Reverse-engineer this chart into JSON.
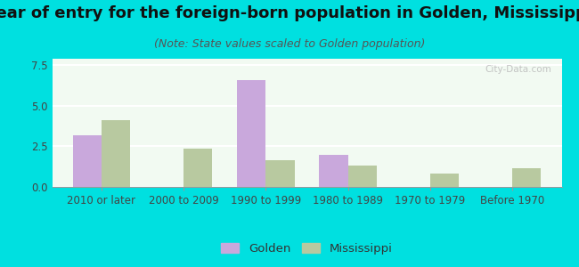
{
  "title": "Year of entry for the foreign-born population in Golden, Mississippi",
  "subtitle": "(Note: State values scaled to Golden population)",
  "categories": [
    "2010 or later",
    "2000 to 2009",
    "1990 to 1999",
    "1980 to 1989",
    "1970 to 1979",
    "Before 1970"
  ],
  "golden_values": [
    3.2,
    0.0,
    6.6,
    2.0,
    0.0,
    0.0
  ],
  "mississippi_values": [
    4.1,
    2.35,
    1.65,
    1.3,
    0.85,
    1.15
  ],
  "golden_color": "#c9a8dc",
  "mississippi_color": "#b8c9a0",
  "background_outer": "#00e0e0",
  "background_chart_top": "#f5fff5",
  "background_chart_bottom": "#e8f5e8",
  "ylim": [
    0,
    7.9
  ],
  "yticks": [
    0,
    2.5,
    5,
    7.5
  ],
  "title_fontsize": 13,
  "subtitle_fontsize": 9,
  "tick_fontsize": 8.5,
  "legend_fontsize": 9.5,
  "bar_width": 0.35
}
